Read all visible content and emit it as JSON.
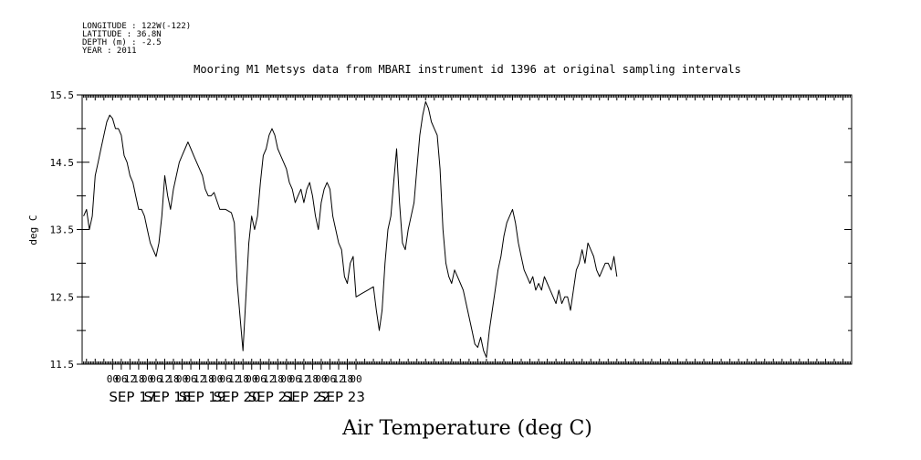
{
  "header": {
    "meta_lines": [
      "LONGITUDE : 122W(-122)",
      "LATITUDE : 36.8N",
      "DEPTH (m) : -2.5",
      "YEAR : 2011"
    ]
  },
  "chart_data": {
    "type": "line",
    "title": "Mooring M1 Metsys data from MBARI instrument id 1396 at original sampling intervals",
    "xlabel": "Air Temperature (deg C)",
    "ylabel": "deg C",
    "ylim": [
      11.5,
      15.5
    ],
    "xlim_hours": [
      -21,
      510
    ],
    "y_ticks": [
      "15.5",
      "14.5",
      "13.5",
      "12.5",
      "11.5"
    ],
    "hour_tick_labels": [
      "00",
      "06",
      "12",
      "18",
      "00",
      "06",
      "12",
      "18",
      "00",
      "06",
      "12",
      "18",
      "00",
      "06",
      "12",
      "18",
      "00",
      "06",
      "12",
      "18",
      "00",
      "06",
      "12",
      "18",
      "00",
      "06",
      "12",
      "18",
      "00"
    ],
    "day_labels": [
      "SEP 17",
      "SEP 18",
      "SEP 19",
      "SEP 20",
      "SEP 21",
      "SEP 22",
      "SEP 23"
    ],
    "grid": false,
    "series": [
      {
        "points": [
          [
            -20,
            13.7
          ],
          [
            -18,
            13.8
          ],
          [
            -16,
            13.5
          ],
          [
            -14,
            13.7
          ],
          [
            -12,
            14.3
          ],
          [
            -10,
            14.5
          ],
          [
            -8,
            14.7
          ],
          [
            -6,
            14.9
          ],
          [
            -4,
            15.1
          ],
          [
            -2,
            15.2
          ],
          [
            0,
            15.15
          ],
          [
            2,
            15.0
          ],
          [
            4,
            15.0
          ],
          [
            6,
            14.9
          ],
          [
            8,
            14.6
          ],
          [
            10,
            14.5
          ],
          [
            12,
            14.3
          ],
          [
            14,
            14.2
          ],
          [
            16,
            14.0
          ],
          [
            18,
            13.8
          ],
          [
            20,
            13.8
          ],
          [
            22,
            13.7
          ],
          [
            24,
            13.5
          ],
          [
            26,
            13.3
          ],
          [
            28,
            13.2
          ],
          [
            30,
            13.1
          ],
          [
            32,
            13.3
          ],
          [
            34,
            13.7
          ],
          [
            36,
            14.3
          ],
          [
            38,
            14.0
          ],
          [
            40,
            13.8
          ],
          [
            42,
            14.1
          ],
          [
            44,
            14.3
          ],
          [
            46,
            14.5
          ],
          [
            48,
            14.6
          ],
          [
            50,
            14.7
          ],
          [
            52,
            14.8
          ],
          [
            54,
            14.7
          ],
          [
            56,
            14.6
          ],
          [
            58,
            14.5
          ],
          [
            60,
            14.4
          ],
          [
            62,
            14.3
          ],
          [
            64,
            14.1
          ],
          [
            66,
            14.0
          ],
          [
            68,
            14.0
          ],
          [
            70,
            14.05
          ],
          [
            74,
            13.8
          ],
          [
            78,
            13.8
          ],
          [
            82,
            13.75
          ],
          [
            84,
            13.6
          ],
          [
            86,
            12.7
          ],
          [
            88,
            12.2
          ],
          [
            90,
            11.7
          ],
          [
            92,
            12.5
          ],
          [
            94,
            13.3
          ],
          [
            96,
            13.7
          ],
          [
            98,
            13.5
          ],
          [
            100,
            13.7
          ],
          [
            102,
            14.2
          ],
          [
            104,
            14.6
          ],
          [
            106,
            14.7
          ],
          [
            108,
            14.9
          ],
          [
            110,
            15.0
          ],
          [
            112,
            14.9
          ],
          [
            114,
            14.7
          ],
          [
            116,
            14.6
          ],
          [
            118,
            14.5
          ],
          [
            120,
            14.4
          ],
          [
            122,
            14.2
          ],
          [
            124,
            14.1
          ],
          [
            126,
            13.9
          ],
          [
            128,
            14.0
          ],
          [
            130,
            14.1
          ],
          [
            132,
            13.9
          ],
          [
            134,
            14.1
          ],
          [
            136,
            14.2
          ],
          [
            138,
            14.0
          ],
          [
            140,
            13.7
          ],
          [
            142,
            13.5
          ],
          [
            144,
            13.9
          ],
          [
            146,
            14.1
          ],
          [
            148,
            14.2
          ],
          [
            150,
            14.1
          ],
          [
            152,
            13.7
          ],
          [
            154,
            13.5
          ],
          [
            156,
            13.3
          ],
          [
            158,
            13.2
          ],
          [
            160,
            12.8
          ],
          [
            162,
            12.7
          ],
          [
            164,
            13.0
          ],
          [
            166,
            13.1
          ],
          [
            168,
            12.5
          ],
          [
            172,
            12.55
          ],
          [
            176,
            12.6
          ],
          [
            180,
            12.65
          ],
          [
            182,
            12.3
          ],
          [
            184,
            12.0
          ],
          [
            186,
            12.3
          ],
          [
            188,
            13.0
          ],
          [
            190,
            13.5
          ],
          [
            192,
            13.7
          ],
          [
            194,
            14.2
          ],
          [
            196,
            14.7
          ],
          [
            198,
            13.9
          ],
          [
            200,
            13.3
          ],
          [
            202,
            13.2
          ],
          [
            204,
            13.5
          ],
          [
            206,
            13.7
          ],
          [
            208,
            13.9
          ],
          [
            210,
            14.4
          ],
          [
            212,
            14.9
          ],
          [
            214,
            15.2
          ],
          [
            216,
            15.4
          ],
          [
            218,
            15.3
          ],
          [
            220,
            15.1
          ],
          [
            222,
            15.0
          ],
          [
            224,
            14.9
          ],
          [
            226,
            14.4
          ],
          [
            228,
            13.5
          ],
          [
            230,
            13.0
          ],
          [
            232,
            12.8
          ],
          [
            234,
            12.7
          ],
          [
            236,
            12.9
          ],
          [
            238,
            12.8
          ],
          [
            240,
            12.7
          ],
          [
            242,
            12.6
          ],
          [
            244,
            12.4
          ],
          [
            246,
            12.2
          ],
          [
            248,
            12.0
          ],
          [
            250,
            11.8
          ],
          [
            252,
            11.75
          ],
          [
            254,
            11.9
          ],
          [
            256,
            11.7
          ],
          [
            258,
            11.6
          ],
          [
            260,
            12.0
          ],
          [
            262,
            12.3
          ],
          [
            264,
            12.6
          ],
          [
            266,
            12.9
          ],
          [
            268,
            13.1
          ],
          [
            270,
            13.4
          ],
          [
            272,
            13.6
          ],
          [
            274,
            13.7
          ],
          [
            276,
            13.8
          ],
          [
            278,
            13.6
          ],
          [
            280,
            13.3
          ],
          [
            282,
            13.1
          ],
          [
            284,
            12.9
          ],
          [
            286,
            12.8
          ],
          [
            288,
            12.7
          ],
          [
            290,
            12.8
          ],
          [
            292,
            12.6
          ],
          [
            294,
            12.7
          ],
          [
            296,
            12.6
          ],
          [
            298,
            12.8
          ],
          [
            300,
            12.7
          ],
          [
            302,
            12.6
          ],
          [
            304,
            12.5
          ],
          [
            306,
            12.4
          ],
          [
            308,
            12.6
          ],
          [
            310,
            12.4
          ],
          [
            312,
            12.5
          ],
          [
            314,
            12.5
          ],
          [
            316,
            12.3
          ],
          [
            318,
            12.6
          ],
          [
            320,
            12.9
          ],
          [
            322,
            13.0
          ],
          [
            324,
            13.2
          ],
          [
            326,
            13.0
          ],
          [
            328,
            13.3
          ],
          [
            330,
            13.2
          ],
          [
            332,
            13.1
          ],
          [
            334,
            12.9
          ],
          [
            336,
            12.8
          ],
          [
            338,
            12.9
          ],
          [
            340,
            13.0
          ],
          [
            342,
            13.0
          ],
          [
            344,
            12.9
          ],
          [
            346,
            13.1
          ],
          [
            348,
            12.8
          ]
        ]
      }
    ]
  }
}
